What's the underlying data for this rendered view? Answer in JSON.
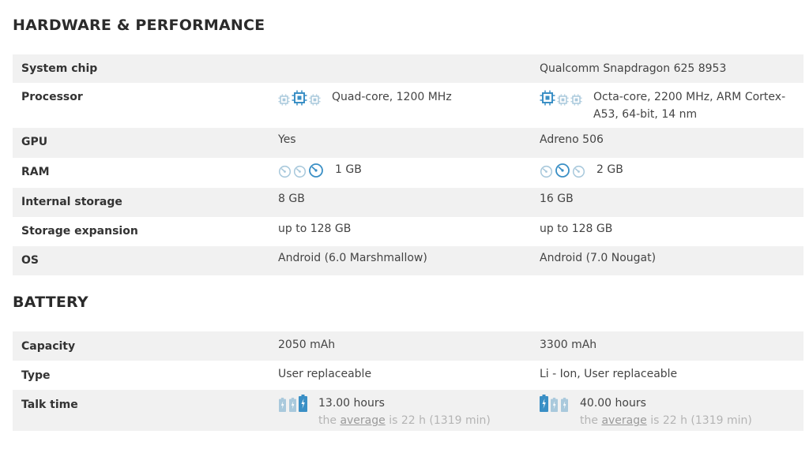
{
  "hardware": {
    "title": "HARDWARE & PERFORMANCE",
    "rows": {
      "system_chip": {
        "label": "System chip",
        "a": "",
        "b": "Qualcomm Snapdragon 625 8953"
      },
      "processor": {
        "label": "Processor",
        "a": "Quad-core, 1200 MHz",
        "b": "Octa-core, 2200 MHz, ARM Cortex-A53, 64-bit, 14 nm",
        "b_line1": "Octa-core, 2200 MHz, ARM Cortex-",
        "b_line2": "A53, 64-bit, 14 nm",
        "a_rating": 2,
        "b_rating": 1
      },
      "gpu": {
        "label": "GPU",
        "a": "Yes",
        "b": "Adreno 506"
      },
      "ram": {
        "label": "RAM",
        "a": "1 GB",
        "b": "2 GB",
        "a_rating": 3,
        "b_rating": 2
      },
      "internal_storage": {
        "label": "Internal storage",
        "a": "8 GB",
        "b": "16 GB"
      },
      "storage_expansion": {
        "label": "Storage expansion",
        "a": "up to 128 GB",
        "b": "up to 128 GB"
      },
      "os": {
        "label": "OS",
        "a": "Android (6.0 Marshmallow)",
        "b": "Android (7.0 Nougat)"
      }
    }
  },
  "battery": {
    "title": "BATTERY",
    "rows": {
      "capacity": {
        "label": "Capacity",
        "a": "2050 mAh",
        "b": "3300 mAh"
      },
      "type": {
        "label": "Type",
        "a": "User replaceable",
        "b": "Li - Ion, User replaceable"
      },
      "talk_time": {
        "label": "Talk time",
        "a": "13.00 hours",
        "b": "40.00 hours",
        "a_rating": 3,
        "b_rating": 1,
        "avg_prefix": "the",
        "avg_link": "average",
        "avg_suffix": "is 22 h (1319 min)"
      }
    }
  },
  "colors": {
    "icon_active": "#3a8fc5",
    "icon_inactive": "#a9c9dc",
    "row_stripe": "#f1f1f1"
  },
  "icons": {
    "processor": "cpu-chip-icon",
    "ram": "speedometer-icon",
    "battery": "battery-icon"
  }
}
